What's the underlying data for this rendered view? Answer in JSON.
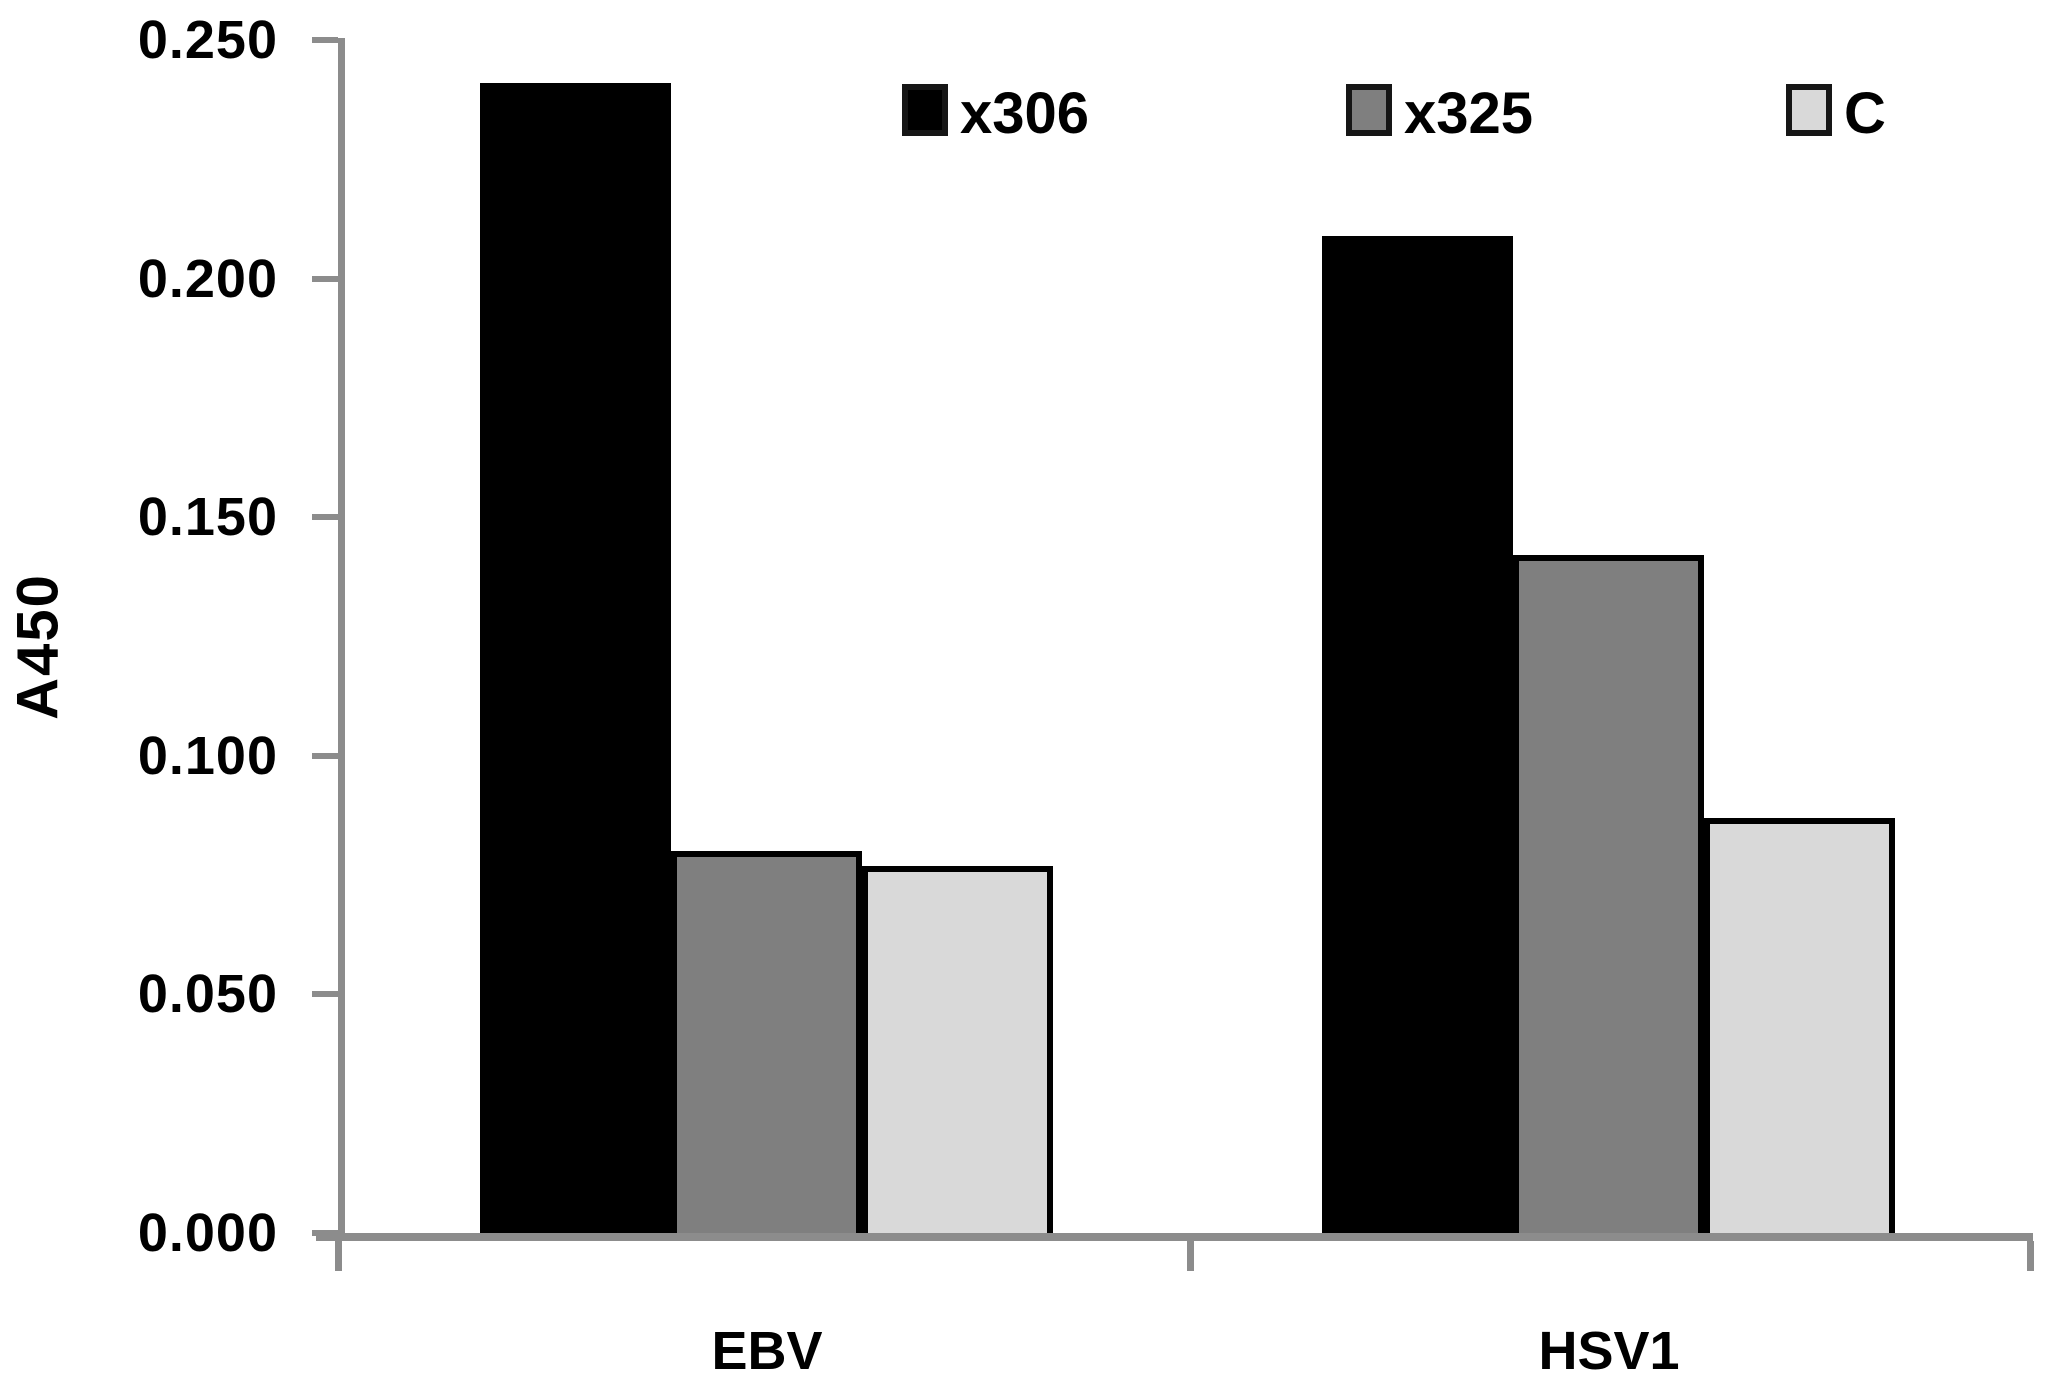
{
  "chart_data": {
    "type": "bar",
    "title": "",
    "xlabel": "",
    "ylabel": "A450",
    "categories": [
      "EBV",
      "HSV1"
    ],
    "series": [
      {
        "name": "x306",
        "color": "#000000",
        "values": [
          0.241,
          0.209
        ]
      },
      {
        "name": "x325",
        "color": "#7f7f7f",
        "values": [
          0.08,
          0.142
        ]
      },
      {
        "name": "C",
        "color": "#d9d9d9",
        "values": [
          0.077,
          0.087
        ]
      }
    ],
    "ylim": [
      0.0,
      0.25
    ],
    "yticks": [
      {
        "value": 0.25,
        "label": "0.250"
      },
      {
        "value": 0.2,
        "label": "0.200"
      },
      {
        "value": 0.15,
        "label": "0.150"
      },
      {
        "value": 0.1,
        "label": "0.100"
      },
      {
        "value": 0.05,
        "label": "0.050"
      },
      {
        "value": 0.0,
        "label": "0.000"
      }
    ],
    "grid": false,
    "legend_position": "top-inside",
    "axis_color": "#8c8c8c",
    "bar_border_color": "#000000"
  }
}
